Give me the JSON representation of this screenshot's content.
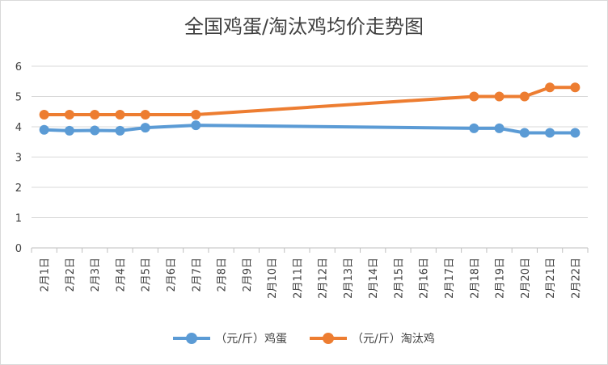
{
  "chart_data": {
    "type": "line",
    "title": "全国鸡蛋/淘汰鸡均价走势图",
    "categories": [
      "2月1日",
      "2月2日",
      "2月3日",
      "2月4日",
      "2月5日",
      "2月6日",
      "2月7日",
      "2月8日",
      "2月9日",
      "2月10日",
      "2月11日",
      "2月12日",
      "2月13日",
      "2月14日",
      "2月15日",
      "2月16日",
      "2月17日",
      "2月18日",
      "2月19日",
      "2月20日",
      "2月21日",
      "2月22日"
    ],
    "ylim": [
      0,
      6
    ],
    "yticks": [
      "0",
      "1",
      "2",
      "3",
      "4",
      "5",
      "6"
    ],
    "grid": true,
    "legend_position": "bottom",
    "series": [
      {
        "name": "（元/斤）鸡蛋",
        "color": "#5b9bd5",
        "values": [
          3.9,
          3.87,
          3.88,
          3.87,
          3.97,
          null,
          4.05,
          null,
          null,
          null,
          null,
          null,
          null,
          null,
          null,
          null,
          null,
          3.95,
          3.95,
          3.8,
          3.8,
          3.8
        ]
      },
      {
        "name": "（元/斤）淘汰鸡",
        "color": "#ed7d31",
        "values": [
          4.4,
          4.4,
          4.4,
          4.4,
          4.4,
          null,
          4.4,
          null,
          null,
          null,
          null,
          null,
          null,
          null,
          null,
          null,
          null,
          5.0,
          5.0,
          5.0,
          5.3,
          5.3
        ]
      }
    ]
  }
}
